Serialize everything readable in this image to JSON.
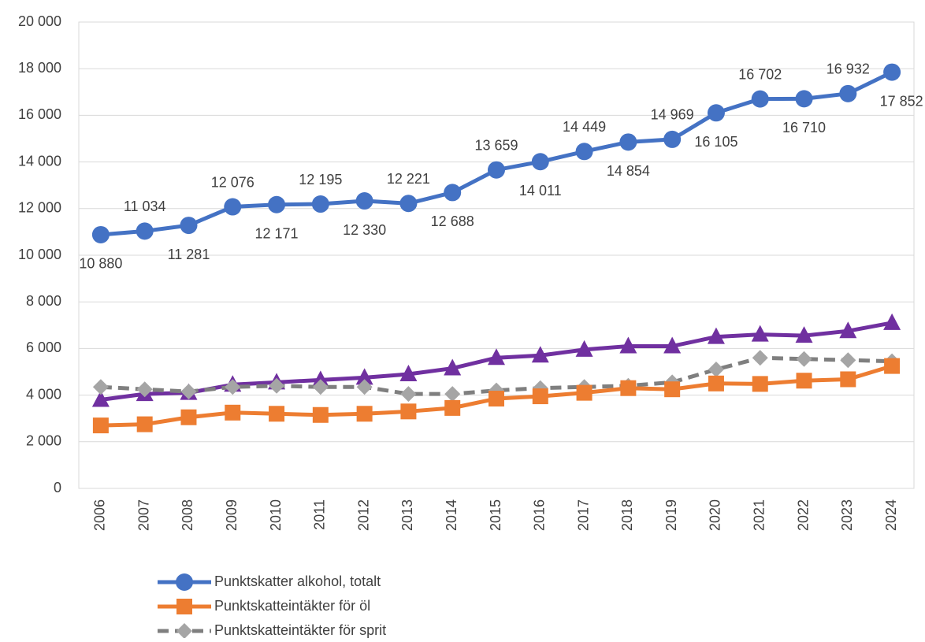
{
  "chart_data": {
    "type": "line",
    "categories": [
      "2006",
      "2007",
      "2008",
      "2009",
      "2010",
      "2011",
      "2012",
      "2013",
      "2014",
      "2015",
      "2016",
      "2017",
      "2018",
      "2019",
      "2020",
      "2021",
      "2022",
      "2023",
      "2024"
    ],
    "series": [
      {
        "name": "Punktskatter alkohol, totalt",
        "color": "#4472c4",
        "marker": "circle",
        "values": [
          10880,
          11034,
          11281,
          12076,
          12171,
          12195,
          12330,
          12221,
          12688,
          13659,
          14011,
          14449,
          14854,
          14969,
          16105,
          16702,
          16710,
          16932,
          17852
        ],
        "value_labels": [
          "10 880",
          "11 034",
          "11 281",
          "12 076",
          "12 171",
          "12 195",
          "12 330",
          "12 221",
          "12 688",
          "13 659",
          "14 011",
          "14 449",
          "14 854",
          "14 969",
          "16 105",
          "16 702",
          "16 710",
          "16 932",
          "17 852"
        ]
      },
      {
        "name": "Punktskatteintäkter för öl",
        "color": "#ed7d31",
        "marker": "square",
        "values": [
          2700,
          2750,
          3050,
          3250,
          3200,
          3150,
          3200,
          3300,
          3450,
          3850,
          3950,
          4100,
          4300,
          4250,
          4500,
          4480,
          4620,
          4680,
          5250
        ]
      },
      {
        "name": "Punktskatteintäkter för sprit",
        "color": "#7f7f7f",
        "marker": "diamond",
        "dash": true,
        "values": [
          4350,
          4250,
          4150,
          4350,
          4400,
          4350,
          4350,
          4050,
          4050,
          4200,
          4300,
          4350,
          4400,
          4550,
          5100,
          5600,
          5550,
          5500,
          5450
        ]
      },
      {
        "color": "#7030a0",
        "marker": "triangle",
        "values": [
          3800,
          4050,
          4100,
          4450,
          4550,
          4650,
          4750,
          4900,
          5150,
          5600,
          5700,
          5950,
          6100,
          6100,
          6500,
          6600,
          6550,
          6750,
          7100
        ]
      }
    ],
    "ylim": [
      0,
      20000
    ],
    "yticks": [
      0,
      {
        "value": 2000,
        "label": "2 000"
      },
      {
        "value": 4000,
        "label": "4 000"
      },
      {
        "value": 6000,
        "label": "6 000"
      },
      {
        "value": 8000,
        "label": "8 000"
      },
      {
        "value": 10000,
        "label": "10 000"
      },
      {
        "value": 12000,
        "label": "12 000"
      },
      {
        "value": 14000,
        "label": "14 000"
      },
      {
        "value": 16000,
        "label": "16 000"
      },
      {
        "value": 18000,
        "label": "18 000"
      },
      {
        "value": 20000,
        "label": "20 000"
      }
    ],
    "grid": true
  }
}
